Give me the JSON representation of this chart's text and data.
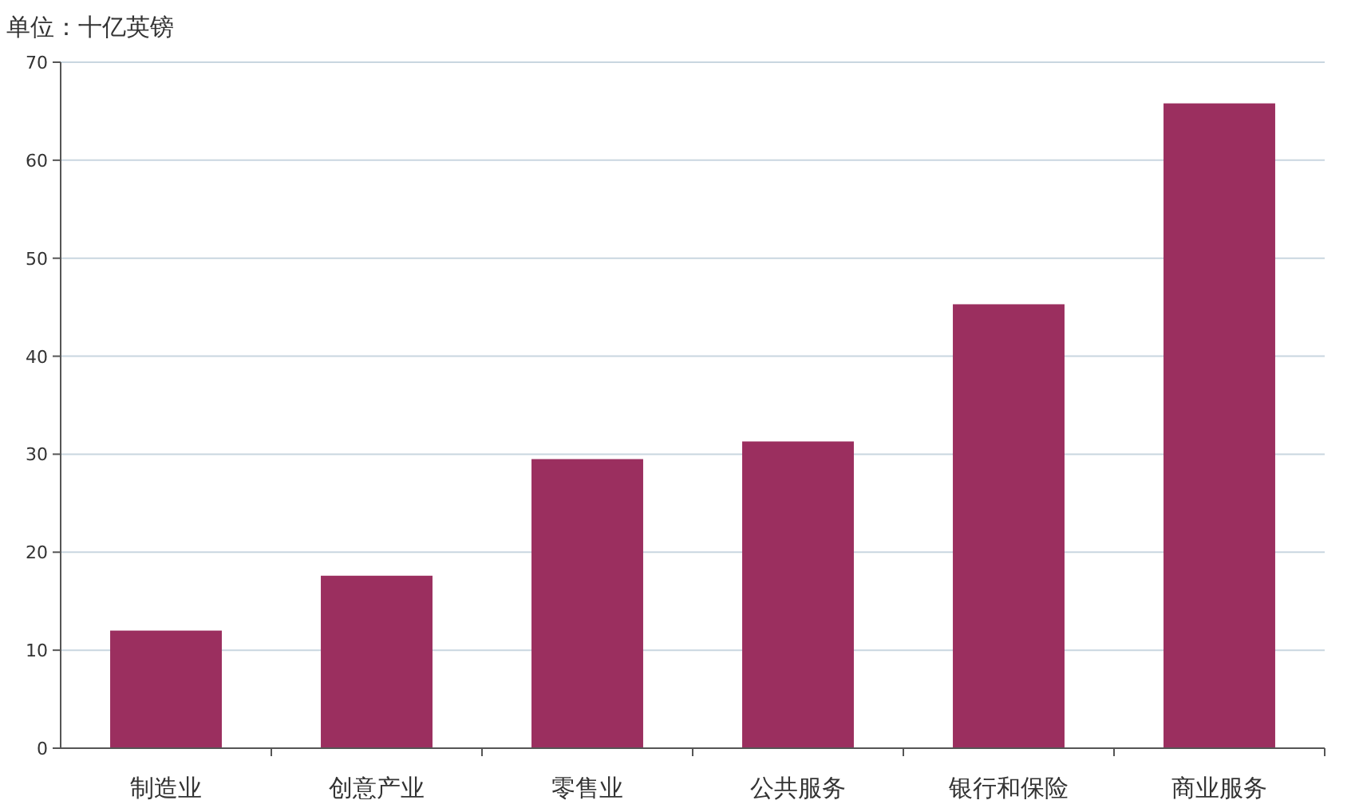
{
  "chart_data": {
    "type": "bar",
    "ylabel": "单位：十亿英镑",
    "categories": [
      "制造业",
      "创意产业",
      "零售业",
      "公共服务",
      "银行和保险",
      "商业服务"
    ],
    "values": [
      12,
      17.6,
      29.5,
      31.3,
      45.3,
      65.8
    ],
    "color": "#9b2f5f",
    "ylim": [
      0,
      70
    ],
    "yticks": [
      0,
      10,
      20,
      30,
      40,
      50,
      60,
      70
    ],
    "grid": "y"
  }
}
